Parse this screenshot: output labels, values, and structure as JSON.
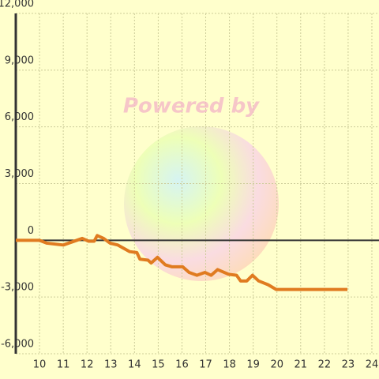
{
  "chart_data": {
    "type": "line",
    "annotation": "Powered by",
    "x": [
      9,
      10,
      10.3,
      11,
      11.8,
      12.07,
      12.3,
      12.43,
      12.7,
      12.97,
      13.3,
      13.8,
      14.1,
      14.23,
      14.57,
      14.7,
      14.97,
      15.3,
      15.57,
      16.03,
      16.3,
      16.63,
      16.97,
      17.23,
      17.5,
      17.97,
      18.3,
      18.47,
      18.73,
      18.97,
      19.23,
      19.63,
      19.97,
      22.97
    ],
    "series": [
      {
        "color": "#e07b20",
        "values": [
          0,
          0,
          -150,
          -250,
          100,
          -50,
          -50,
          250,
          100,
          -150,
          -250,
          -600,
          -650,
          -1000,
          -1050,
          -1200,
          -900,
          -1300,
          -1400,
          -1400,
          -1700,
          -1850,
          -1700,
          -1850,
          -1550,
          -1800,
          -1850,
          -2150,
          -2150,
          -1850,
          -2150,
          -2350,
          -2600,
          -2600
        ]
      }
    ],
    "xlim": [
      9,
      24.3
    ],
    "xticks": [
      10,
      11,
      12,
      13,
      14,
      15,
      16,
      17,
      18,
      19,
      20,
      21,
      22,
      23,
      24
    ],
    "ylim": [
      -6000,
      12000
    ],
    "yticks": [
      {
        "value": -6000,
        "label": "-6,000"
      },
      {
        "value": -3000,
        "label": "-3,000"
      },
      0,
      {
        "value": 3000,
        "label": "3,000"
      },
      {
        "value": 6000,
        "label": "6,000"
      },
      {
        "value": 9000,
        "label": "9,000"
      },
      {
        "value": 12000,
        "label": "12,000"
      }
    ],
    "grid": true
  }
}
